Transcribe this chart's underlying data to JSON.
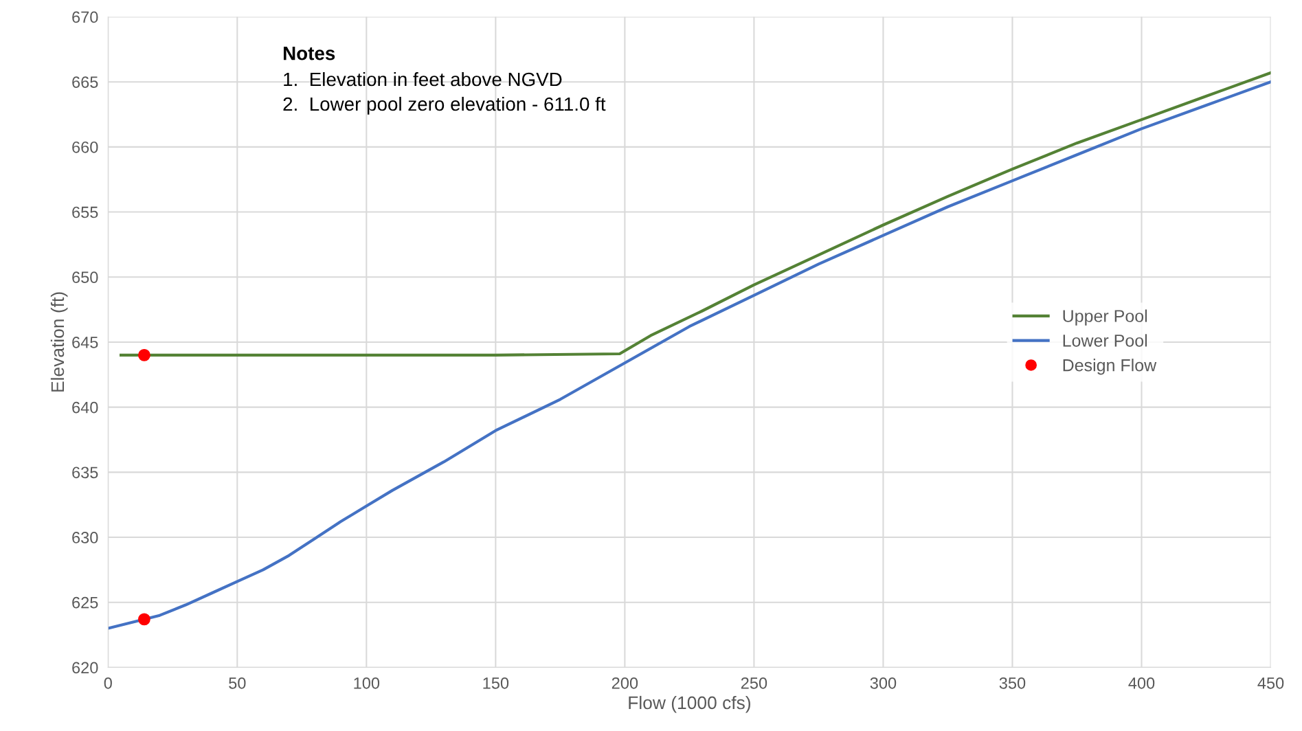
{
  "chart_data": {
    "type": "line",
    "xlabel": "Flow (1000 cfs)",
    "ylabel": "Elevation (ft)",
    "annotations": [
      "Notes\n1.  Elevation in feet above NGVD\n2.  Lower pool zero elevation - 611.0 ft"
    ],
    "series": [
      {
        "name": "Upper Pool",
        "color": "#548235",
        "x": [
          5,
          50,
          100,
          150,
          198,
          210,
          230,
          250,
          275,
          300,
          325,
          350,
          375,
          400,
          425,
          450
        ],
        "values": [
          644.0,
          644.0,
          644.0,
          644.0,
          644.1,
          645.5,
          647.4,
          649.4,
          651.7,
          654.0,
          656.2,
          658.3,
          660.3,
          662.1,
          663.9,
          665.7
        ]
      },
      {
        "name": "Lower Pool",
        "color": "#4472c4",
        "x": [
          0,
          20,
          30,
          40,
          50,
          60,
          70,
          80,
          90,
          100,
          110,
          130,
          150,
          175,
          200,
          225,
          250,
          275,
          300,
          325,
          350,
          375,
          400,
          425,
          450
        ],
        "values": [
          623.0,
          624.0,
          624.8,
          625.7,
          626.6,
          627.5,
          628.6,
          629.9,
          631.2,
          632.4,
          633.6,
          635.8,
          638.2,
          640.6,
          643.4,
          646.2,
          648.6,
          651.0,
          653.2,
          655.4,
          657.4,
          659.4,
          661.4,
          663.2,
          665.0
        ]
      },
      {
        "name": "Design Flow",
        "type": "scatter",
        "color": "#ff0000",
        "marker": "circle",
        "x": [
          14,
          14
        ],
        "values": [
          644.0,
          623.7
        ]
      }
    ],
    "xlim": [
      0,
      450
    ],
    "xticks": [
      0,
      50,
      100,
      150,
      200,
      250,
      300,
      350,
      400,
      450
    ],
    "ylim": [
      620,
      670
    ],
    "yticks": [
      620,
      625,
      630,
      635,
      640,
      645,
      650,
      655,
      660,
      665,
      670
    ],
    "grid": true,
    "legend": "right"
  }
}
